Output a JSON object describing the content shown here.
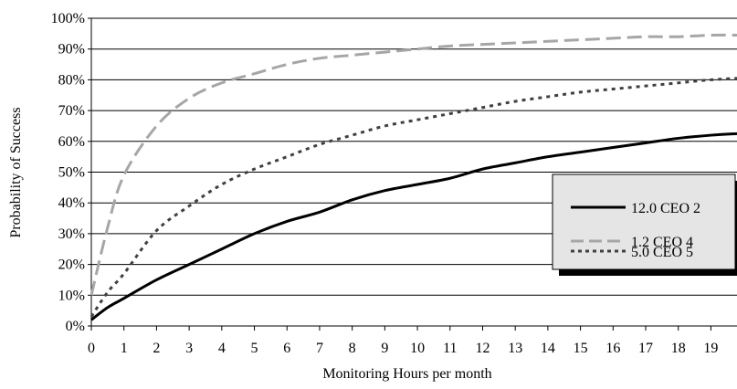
{
  "chart_data": {
    "type": "line",
    "title": "",
    "xlabel": "Monitoring Hours per month",
    "ylabel": "Probability of Success",
    "xlim": [
      0,
      19.8
    ],
    "ylim": [
      0,
      100
    ],
    "x_ticks": [
      "0",
      "1",
      "2",
      "3",
      "4",
      "5",
      "6",
      "7",
      "8",
      "9",
      "10",
      "11",
      "12",
      "13",
      "14",
      "15",
      "16",
      "17",
      "18",
      "19"
    ],
    "y_ticks": [
      "0%",
      "10%",
      "20%",
      "30%",
      "40%",
      "50%",
      "60%",
      "70%",
      "80%",
      "90%",
      "100%"
    ],
    "grid": "horizontal",
    "legend_position": "right",
    "x": [
      0,
      0.5,
      1,
      2,
      3,
      4,
      5,
      6,
      7,
      8,
      9,
      10,
      11,
      12,
      13,
      14,
      15,
      16,
      17,
      18,
      19,
      19.8
    ],
    "series": [
      {
        "name": "12.0 CEO 2",
        "style": "solid",
        "color": "#000000",
        "values": [
          2,
          6,
          9,
          15,
          20,
          25,
          30,
          34,
          37,
          41,
          44,
          46,
          48,
          51,
          53,
          55,
          56.5,
          58,
          59.5,
          61,
          62,
          62.5
        ]
      },
      {
        "name": "1.2 CEO 4",
        "style": "long-dash",
        "color": "#a6a6a6",
        "values": [
          10,
          32,
          49,
          65,
          74,
          79,
          82,
          85,
          87,
          88,
          89,
          90,
          91,
          91.5,
          92,
          92.5,
          93,
          93.5,
          94,
          94,
          94.5,
          94.5
        ]
      },
      {
        "name": "5.0 CEO 5",
        "style": "dotted",
        "color": "#404040",
        "values": [
          3,
          11,
          17,
          31,
          39,
          46,
          51,
          55,
          59,
          62,
          65,
          67,
          69,
          71,
          73,
          74.5,
          76,
          77,
          78,
          79,
          80,
          80.5
        ]
      }
    ]
  }
}
